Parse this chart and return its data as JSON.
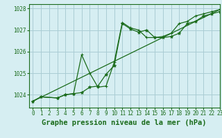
{
  "title": "Graphe pression niveau de la mer (hPa)",
  "bg_color": "#d6eef2",
  "grid_color": "#aaccd4",
  "line_color": "#1a6b1a",
  "xlim": [
    -0.5,
    23
  ],
  "ylim": [
    1023.4,
    1028.2
  ],
  "yticks": [
    1024,
    1025,
    1026,
    1027,
    1028
  ],
  "xticks": [
    0,
    1,
    2,
    3,
    4,
    5,
    6,
    7,
    8,
    9,
    10,
    11,
    12,
    13,
    14,
    15,
    16,
    17,
    18,
    19,
    20,
    21,
    22,
    23
  ],
  "series1_x": [
    0,
    1,
    3,
    4,
    5,
    6,
    7,
    8,
    9,
    10,
    11,
    12,
    13,
    14,
    15,
    16,
    17,
    18,
    19,
    20,
    21,
    22,
    23
  ],
  "series1_y": [
    1023.7,
    1023.9,
    1023.85,
    1024.0,
    1024.05,
    1024.1,
    1024.35,
    1024.4,
    1024.95,
    1025.35,
    1027.3,
    1027.05,
    1026.9,
    1027.0,
    1026.65,
    1026.65,
    1026.7,
    1026.85,
    1027.3,
    1027.4,
    1027.65,
    1027.75,
    1027.85
  ],
  "series2_x": [
    0,
    1,
    3,
    4,
    5,
    6,
    7,
    8,
    9,
    10,
    11,
    12,
    13,
    14,
    15,
    16,
    17,
    18,
    19,
    20,
    21,
    22,
    23
  ],
  "series2_y": [
    1023.7,
    1023.9,
    1023.85,
    1024.0,
    1024.05,
    1025.85,
    1025.0,
    1024.35,
    1024.4,
    1025.5,
    1027.35,
    1027.1,
    1027.0,
    1026.65,
    1026.65,
    1026.7,
    1026.85,
    1027.3,
    1027.4,
    1027.65,
    1027.75,
    1027.85,
    1027.95
  ],
  "trend_x": [
    0,
    23
  ],
  "trend_y": [
    1023.7,
    1027.95
  ],
  "title_fontsize": 7.5,
  "tick_fontsize": 5.5
}
